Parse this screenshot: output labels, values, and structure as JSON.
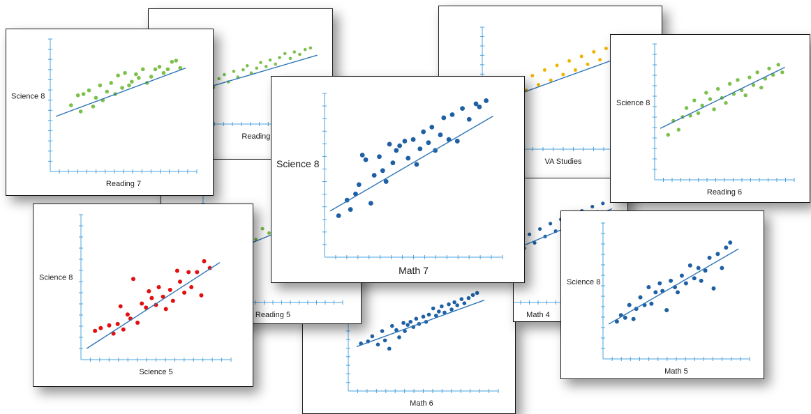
{
  "axis_color": "#4aa3df",
  "trend_color": "#2e75b6",
  "chart_data": [
    {
      "id": "math6",
      "type": "scatter",
      "xlabel": "Math 6",
      "ylabel": "",
      "color": "#1f5fa3",
      "trend": [
        0.2,
        3.9,
        9.2,
        8.4
      ],
      "x": [
        0.5,
        1.0,
        1.3,
        1.7,
        2.0,
        2.2,
        2.5,
        2.7,
        3.0,
        3.2,
        3.5,
        3.6,
        3.8,
        4.0,
        4.2,
        4.4,
        4.6,
        4.9,
        5.1,
        5.3,
        5.6,
        5.8,
        6.0,
        6.2,
        6.4,
        6.7,
        6.9,
        7.1,
        7.3,
        7.6,
        7.8,
        8.1,
        8.4,
        8.7
      ],
      "y": [
        4.2,
        4.4,
        4.9,
        4.1,
        5.4,
        4.5,
        3.7,
        5.9,
        5.5,
        4.8,
        6.2,
        5.4,
        6.0,
        6.3,
        5.8,
        6.6,
        6.1,
        6.8,
        6.3,
        7.0,
        7.6,
        6.9,
        7.3,
        7.8,
        7.2,
        8.0,
        7.5,
        8.2,
        7.9,
        8.5,
        8.1,
        8.6,
        8.9,
        9.1
      ]
    },
    {
      "id": "reading4",
      "type": "scatter",
      "xlabel": "Reading 4",
      "ylabel": "",
      "color": "#7cc04a",
      "trend": [
        0.2,
        3.6,
        9.2,
        8.0
      ],
      "x": [
        0.4,
        0.8,
        1.2,
        1.5,
        1.9,
        2.3,
        2.6,
        3.0,
        3.3,
        3.7,
        4.0,
        4.3,
        4.7,
        5.0,
        5.4,
        5.7,
        6.1,
        6.4,
        6.8,
        7.2,
        7.5,
        7.9,
        8.3,
        8.7
      ],
      "y": [
        3.5,
        4.2,
        4.8,
        4.0,
        5.1,
        5.6,
        4.7,
        6.0,
        5.3,
        6.2,
        6.7,
        5.8,
        6.4,
        7.1,
        6.6,
        7.4,
        6.9,
        7.7,
        8.2,
        7.6,
        8.4,
        8.1,
        8.7,
        8.9
      ]
    },
    {
      "id": "vastudies",
      "type": "scatter",
      "xlabel": "VA Studies",
      "ylabel": "",
      "color": "#f0b400",
      "trend": [
        0.2,
        3.6,
        9.2,
        8.0
      ],
      "x": [
        0.5,
        0.9,
        1.3,
        1.7,
        2.1,
        2.5,
        2.9,
        3.3,
        3.7,
        4.1,
        4.5,
        4.9,
        5.3,
        5.7,
        6.1,
        6.5,
        6.9,
        7.3,
        7.7,
        8.1,
        8.5
      ],
      "y": [
        4.4,
        3.6,
        5.0,
        4.3,
        5.6,
        4.8,
        6.1,
        5.3,
        6.6,
        5.7,
        7.0,
        6.2,
        7.4,
        6.6,
        7.8,
        7.1,
        8.2,
        7.5,
        8.5,
        7.9,
        8.8
      ]
    },
    {
      "id": "reading5",
      "type": "scatter",
      "xlabel": "Reading 5",
      "ylabel": "",
      "color": "#7cc04a",
      "trend": [
        0.2,
        3.6,
        9.2,
        8.0
      ],
      "x": [
        0.6,
        1.1,
        1.6,
        2.1,
        2.6,
        3.1,
        3.6,
        4.1,
        4.6,
        5.1,
        5.6,
        6.1,
        6.6,
        7.1,
        7.6,
        8.1,
        8.6
      ],
      "y": [
        3.9,
        4.6,
        4.2,
        5.3,
        4.9,
        5.9,
        5.4,
        6.4,
        6.0,
        6.9,
        6.5,
        7.4,
        7.0,
        7.8,
        7.5,
        8.3,
        8.7
      ]
    },
    {
      "id": "math4",
      "type": "scatter",
      "xlabel": "Math 4",
      "ylabel": "",
      "color": "#1f5fa3",
      "trend": [
        0.2,
        3.8,
        9.2,
        8.4
      ],
      "x": [
        0.5,
        0.9,
        1.3,
        1.7,
        2.1,
        2.5,
        2.9,
        3.3,
        3.7,
        4.1,
        4.5,
        4.9,
        5.3,
        5.7,
        6.1,
        6.5,
        6.9,
        7.3,
        7.7,
        8.1,
        8.5
      ],
      "y": [
        4.3,
        3.7,
        4.9,
        4.2,
        5.5,
        4.7,
        6.0,
        5.2,
        6.5,
        5.8,
        7.0,
        6.3,
        7.4,
        6.8,
        7.8,
        7.2,
        8.2,
        7.6,
        8.6,
        8.1,
        8.9
      ]
    },
    {
      "id": "reading7",
      "type": "scatter",
      "xlabel": "Reading 7",
      "ylabel": "Science 8",
      "color": "#7cc04a",
      "trend": [
        0.0,
        4.1,
        9.4,
        8.0
      ],
      "x": [
        1.1,
        1.6,
        1.8,
        2.0,
        2.4,
        2.7,
        2.9,
        3.2,
        3.4,
        3.7,
        4.0,
        4.3,
        4.5,
        4.8,
        5.0,
        5.3,
        5.5,
        5.8,
        6.0,
        6.3,
        6.6,
        6.9,
        7.2,
        7.5,
        7.8,
        8.1,
        8.4,
        8.7,
        9.0
      ],
      "y": [
        5.0,
        5.8,
        4.5,
        5.9,
        6.2,
        4.9,
        5.6,
        6.6,
        5.4,
        6.1,
        6.8,
        5.9,
        7.4,
        6.4,
        7.6,
        6.6,
        6.9,
        7.5,
        7.2,
        7.9,
        6.8,
        7.3,
        7.9,
        8.1,
        7.6,
        7.9,
        8.5,
        8.6,
        8.0
      ]
    },
    {
      "id": "reading6",
      "type": "scatter",
      "xlabel": "Reading 6",
      "ylabel": "Science 8",
      "color": "#7cc04a",
      "trend": [
        0.0,
        3.7,
        9.5,
        8.5
      ],
      "x": [
        0.6,
        1.0,
        1.4,
        1.7,
        2.0,
        2.3,
        2.6,
        2.9,
        3.2,
        3.5,
        3.8,
        4.1,
        4.4,
        4.7,
        5.0,
        5.3,
        5.6,
        5.9,
        6.2,
        6.5,
        6.8,
        7.1,
        7.4,
        7.7,
        8.0,
        8.3,
        8.6,
        9.0,
        9.3
      ],
      "y": [
        3.2,
        4.3,
        3.6,
        4.6,
        5.3,
        4.7,
        5.9,
        4.9,
        5.5,
        6.5,
        6.0,
        5.2,
        6.8,
        6.1,
        5.7,
        7.2,
        6.4,
        7.5,
        6.7,
        6.3,
        7.7,
        7.1,
        8.1,
        6.9,
        7.6,
        8.4,
        7.9,
        8.7,
        8.1
      ]
    },
    {
      "id": "science5",
      "type": "scatter",
      "xlabel": "Science 5",
      "ylabel": "Science 8",
      "color": "#e01010",
      "trend": [
        0.0,
        0.5,
        9.4,
        6.8
      ],
      "x": [
        0.6,
        1.0,
        1.6,
        1.9,
        2.2,
        2.4,
        2.6,
        2.9,
        3.1,
        3.3,
        3.6,
        3.9,
        4.2,
        4.4,
        4.6,
        4.9,
        5.1,
        5.4,
        5.6,
        5.9,
        6.1,
        6.4,
        6.6,
        6.9,
        7.2,
        7.4,
        7.8,
        8.1,
        8.3,
        8.7
      ],
      "y": [
        1.8,
        2.0,
        2.2,
        1.6,
        2.3,
        3.6,
        1.9,
        3.0,
        2.7,
        5.6,
        2.4,
        3.8,
        3.5,
        4.7,
        4.2,
        3.7,
        5.0,
        4.3,
        3.4,
        4.8,
        4.0,
        6.2,
        5.4,
        4.6,
        6.1,
        5.0,
        6.1,
        4.4,
        6.9,
        6.4
      ]
    },
    {
      "id": "math5",
      "type": "scatter",
      "xlabel": "Math 5",
      "ylabel": "Science 8",
      "color": "#1f5fa3",
      "trend": [
        0.0,
        2.4,
        9.4,
        8.3
      ],
      "x": [
        0.6,
        0.9,
        1.2,
        1.5,
        1.8,
        2.0,
        2.3,
        2.6,
        2.9,
        3.1,
        3.4,
        3.7,
        3.9,
        4.2,
        4.5,
        4.8,
        5.0,
        5.3,
        5.6,
        5.9,
        6.2,
        6.5,
        6.7,
        7.0,
        7.3,
        7.6,
        7.9,
        8.2,
        8.5,
        8.8
      ],
      "y": [
        2.6,
        3.1,
        2.9,
        3.9,
        2.8,
        3.6,
        4.5,
        3.9,
        5.3,
        4.0,
        4.9,
        5.6,
        5.0,
        3.5,
        5.8,
        5.3,
        4.9,
        6.2,
        5.6,
        7.0,
        6.0,
        6.8,
        5.8,
        6.6,
        7.6,
        5.2,
        7.9,
        6.8,
        8.4,
        8.8
      ]
    },
    {
      "id": "math7",
      "type": "scatter",
      "xlabel": "Math 7",
      "ylabel": "Science 8",
      "color": "#1f5fa3",
      "trend": [
        0.0,
        2.7,
        9.6,
        8.8
      ],
      "x": [
        0.5,
        1.0,
        1.2,
        1.5,
        1.7,
        1.9,
        2.1,
        2.4,
        2.6,
        2.9,
        3.1,
        3.3,
        3.5,
        3.7,
        3.9,
        4.1,
        4.4,
        4.6,
        4.9,
        5.1,
        5.3,
        5.5,
        5.8,
        6.0,
        6.2,
        6.5,
        6.7,
        7.0,
        7.2,
        7.5,
        7.8,
        8.2,
        8.6,
        8.8,
        9.2
      ],
      "y": [
        2.4,
        3.4,
        2.8,
        3.8,
        4.4,
        6.3,
        6.0,
        3.2,
        5.0,
        6.2,
        5.3,
        4.6,
        7.0,
        5.8,
        6.6,
        6.9,
        7.2,
        6.1,
        7.3,
        5.7,
        6.7,
        7.8,
        7.1,
        8.1,
        6.6,
        7.6,
        8.7,
        7.3,
        8.9,
        7.2,
        9.3,
        8.6,
        9.6,
        9.4,
        9.8
      ]
    }
  ]
}
